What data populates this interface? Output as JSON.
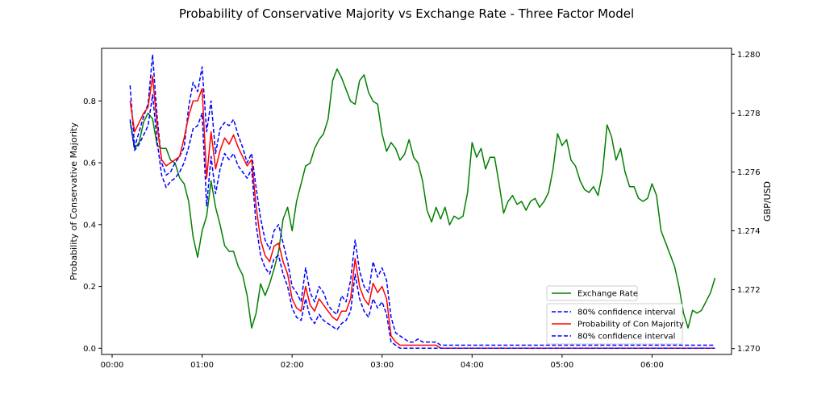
{
  "chart_data": {
    "type": "line",
    "title": "Probability of Conservative Majority vs Exchange Rate - Three Factor Model",
    "xlabel": "",
    "ylabel": "Probability of Conservative Majority",
    "ylabel_right": "GBP/USD",
    "x_ticks": [
      "00:00",
      "01:00",
      "02:00",
      "03:00",
      "04:00",
      "05:00",
      "06:00"
    ],
    "y_ticks_left": [
      "0.0",
      "0.2",
      "0.4",
      "0.6",
      "0.8"
    ],
    "y_ticks_right": [
      "1.270",
      "1.272",
      "1.274",
      "1.276",
      "1.278",
      "1.280"
    ],
    "xlim_minutes": [
      -7,
      413
    ],
    "ylim_left": [
      -0.02,
      0.97
    ],
    "ylim_right": [
      1.2698,
      1.2802
    ],
    "x_minutes": [
      12,
      15,
      18,
      21,
      24,
      27,
      30,
      33,
      36,
      39,
      42,
      45,
      48,
      51,
      54,
      57,
      60,
      63,
      66,
      69,
      72,
      75,
      78,
      81,
      84,
      87,
      90,
      93,
      96,
      99,
      102,
      105,
      108,
      111,
      114,
      117,
      120,
      123,
      126,
      129,
      132,
      135,
      138,
      141,
      144,
      147,
      150,
      153,
      156,
      159,
      162,
      165,
      168,
      171,
      174,
      177,
      180,
      183,
      186,
      189,
      192,
      195,
      198,
      201,
      204,
      207,
      210,
      213,
      216,
      219,
      222,
      225,
      228,
      231,
      234,
      237,
      240,
      243,
      246,
      249,
      252,
      255,
      258,
      261,
      264,
      267,
      270,
      273,
      276,
      279,
      282,
      285,
      288,
      291,
      294,
      297,
      300,
      303,
      306,
      309,
      312,
      315,
      318,
      321,
      324,
      327,
      330,
      333,
      336,
      339,
      342,
      345,
      348,
      351,
      354,
      357,
      360,
      363,
      366,
      369,
      372,
      375,
      378,
      381,
      384,
      387,
      390,
      393,
      396,
      399,
      402
    ],
    "series": [
      {
        "name": "Exchange Rate",
        "axis": "right",
        "color": "#008000",
        "style": "solid",
        "values": [
          1.2777,
          1.2768,
          1.277,
          1.2777,
          1.278,
          1.2778,
          1.2769,
          1.2768,
          1.2768,
          1.2764,
          1.2763,
          1.2758,
          1.2756,
          1.275,
          1.2738,
          1.2731,
          1.274,
          1.2745,
          1.2757,
          1.2748,
          1.2742,
          1.2735,
          1.2733,
          1.2733,
          1.2728,
          1.2725,
          1.2718,
          1.2707,
          1.2712,
          1.2722,
          1.2718,
          1.2722,
          1.2727,
          1.2733,
          1.2744,
          1.2748,
          1.274,
          1.275,
          1.2756,
          1.2762,
          1.2763,
          1.2768,
          1.2771,
          1.2773,
          1.2778,
          1.2791,
          1.2795,
          1.2792,
          1.2788,
          1.2784,
          1.2783,
          1.2791,
          1.2793,
          1.2787,
          1.2784,
          1.2783,
          1.2773,
          1.2767,
          1.277,
          1.2768,
          1.2764,
          1.2766,
          1.2771,
          1.2765,
          1.2763,
          1.2757,
          1.2747,
          1.2743,
          1.2748,
          1.2744,
          1.2748,
          1.2742,
          1.2745,
          1.2744,
          1.2745,
          1.2753,
          1.277,
          1.2765,
          1.2768,
          1.2761,
          1.2765,
          1.2765,
          1.2756,
          1.2746,
          1.275,
          1.2752,
          1.2749,
          1.275,
          1.2747,
          1.275,
          1.2751,
          1.2748,
          1.275,
          1.2753,
          1.2761,
          1.2773,
          1.2769,
          1.2771,
          1.2764,
          1.2762,
          1.2757,
          1.2754,
          1.2753,
          1.2755,
          1.2752,
          1.276,
          1.2776,
          1.2772,
          1.2764,
          1.2768,
          1.276,
          1.2755,
          1.2755,
          1.2751,
          1.275,
          1.2751,
          1.2756,
          1.2752,
          1.274,
          1.2736,
          1.2732,
          1.2728,
          1.2721,
          1.2712,
          1.2707,
          1.2713,
          1.2712,
          1.2713,
          1.2716,
          1.2719,
          1.2724
        ]
      },
      {
        "name": "80% confidence interval",
        "axis": "left",
        "color": "#0000ff",
        "style": "dashed",
        "values": [
          0.85,
          0.65,
          0.7,
          0.75,
          0.79,
          0.95,
          0.75,
          0.6,
          0.56,
          0.57,
          0.6,
          0.62,
          0.65,
          0.78,
          0.86,
          0.83,
          0.91,
          0.7,
          0.8,
          0.63,
          0.71,
          0.73,
          0.72,
          0.74,
          0.69,
          0.65,
          0.6,
          0.63,
          0.52,
          0.42,
          0.35,
          0.32,
          0.38,
          0.4,
          0.34,
          0.28,
          0.2,
          0.18,
          0.15,
          0.26,
          0.18,
          0.15,
          0.2,
          0.18,
          0.14,
          0.12,
          0.11,
          0.17,
          0.15,
          0.22,
          0.35,
          0.25,
          0.2,
          0.18,
          0.28,
          0.23,
          0.26,
          0.22,
          0.1,
          0.05,
          0.04,
          0.03,
          0.02,
          0.02,
          0.03,
          0.02,
          0.02,
          0.02,
          0.02,
          0.01,
          0.01,
          0.01,
          0.01,
          0.01,
          0.01,
          0.01,
          0.01,
          0.01,
          0.01,
          0.01,
          0.01,
          0.01,
          0.01,
          0.01,
          0.01,
          0.01,
          0.01,
          0.01,
          0.01,
          0.01,
          0.01,
          0.01,
          0.01,
          0.01,
          0.01,
          0.01,
          0.01,
          0.01,
          0.01,
          0.01,
          0.01,
          0.01,
          0.01,
          0.01,
          0.01,
          0.01,
          0.01,
          0.01,
          0.01,
          0.01,
          0.01,
          0.01,
          0.01,
          0.01,
          0.01,
          0.01,
          0.01,
          0.01,
          0.01,
          0.01,
          0.01,
          0.01,
          0.01,
          0.01,
          0.01,
          0.01,
          0.01,
          0.01,
          0.01,
          0.01,
          0.01
        ]
      },
      {
        "name": "Probability of Con Majority",
        "axis": "left",
        "color": "#ff0000",
        "style": "solid",
        "values": [
          0.8,
          0.7,
          0.73,
          0.76,
          0.78,
          0.88,
          0.72,
          0.61,
          0.59,
          0.6,
          0.61,
          0.62,
          0.68,
          0.75,
          0.8,
          0.8,
          0.84,
          0.55,
          0.7,
          0.58,
          0.64,
          0.68,
          0.66,
          0.69,
          0.65,
          0.62,
          0.59,
          0.61,
          0.46,
          0.35,
          0.3,
          0.28,
          0.33,
          0.34,
          0.28,
          0.24,
          0.16,
          0.13,
          0.12,
          0.2,
          0.14,
          0.12,
          0.16,
          0.14,
          0.12,
          0.1,
          0.09,
          0.12,
          0.12,
          0.16,
          0.29,
          0.2,
          0.16,
          0.14,
          0.21,
          0.18,
          0.2,
          0.16,
          0.04,
          0.02,
          0.01,
          0.01,
          0.01,
          0.01,
          0.01,
          0.01,
          0.01,
          0.01,
          0.01,
          0.0,
          0.0,
          0.0,
          0.0,
          0.0,
          0.0,
          0.0,
          0.0,
          0.0,
          0.0,
          0.0,
          0.0,
          0.0,
          0.0,
          0.0,
          0.0,
          0.0,
          0.0,
          0.0,
          0.0,
          0.0,
          0.0,
          0.0,
          0.0,
          0.0,
          0.0,
          0.0,
          0.0,
          0.0,
          0.0,
          0.0,
          0.0,
          0.0,
          0.0,
          0.0,
          0.0,
          0.0,
          0.0,
          0.0,
          0.0,
          0.0,
          0.0,
          0.0,
          0.0,
          0.0,
          0.0,
          0.0,
          0.0,
          0.0,
          0.0,
          0.0,
          0.0,
          0.0,
          0.0,
          0.0,
          0.0,
          0.0,
          0.0,
          0.0,
          0.0,
          0.0,
          0.0
        ]
      },
      {
        "name": "80% confidence interval",
        "axis": "left",
        "color": "#0000ff",
        "style": "dashed",
        "values": [
          0.74,
          0.64,
          0.66,
          0.69,
          0.72,
          0.82,
          0.67,
          0.56,
          0.52,
          0.54,
          0.55,
          0.57,
          0.6,
          0.65,
          0.71,
          0.72,
          0.76,
          0.46,
          0.62,
          0.5,
          0.58,
          0.63,
          0.61,
          0.63,
          0.59,
          0.57,
          0.55,
          0.58,
          0.4,
          0.3,
          0.26,
          0.24,
          0.29,
          0.3,
          0.24,
          0.2,
          0.13,
          0.1,
          0.09,
          0.16,
          0.1,
          0.08,
          0.11,
          0.09,
          0.08,
          0.07,
          0.06,
          0.08,
          0.09,
          0.12,
          0.24,
          0.16,
          0.12,
          0.1,
          0.16,
          0.13,
          0.15,
          0.11,
          0.02,
          0.01,
          0.0,
          0.0,
          0.0,
          0.0,
          0.0,
          0.0,
          0.0,
          0.0,
          0.0,
          0.0,
          0.0,
          0.0,
          0.0,
          0.0,
          0.0,
          0.0,
          0.0,
          0.0,
          0.0,
          0.0,
          0.0,
          0.0,
          0.0,
          0.0,
          0.0,
          0.0,
          0.0,
          0.0,
          0.0,
          0.0,
          0.0,
          0.0,
          0.0,
          0.0,
          0.0,
          0.0,
          0.0,
          0.0,
          0.0,
          0.0,
          0.0,
          0.0,
          0.0,
          0.0,
          0.0,
          0.0,
          0.0,
          0.0,
          0.0,
          0.0,
          0.0,
          0.0,
          0.0,
          0.0,
          0.0,
          0.0,
          0.0,
          0.0,
          0.0,
          0.0,
          0.0,
          0.0,
          0.0,
          0.0,
          0.0,
          0.0,
          0.0,
          0.0,
          0.0,
          0.0,
          0.0
        ]
      }
    ],
    "legend_top": [
      "Exchange Rate"
    ],
    "legend_bottom": [
      "80% confidence interval",
      "Probability of Con Majority",
      "80% confidence interval"
    ],
    "legend_placement": "lower-right",
    "grid": false
  }
}
